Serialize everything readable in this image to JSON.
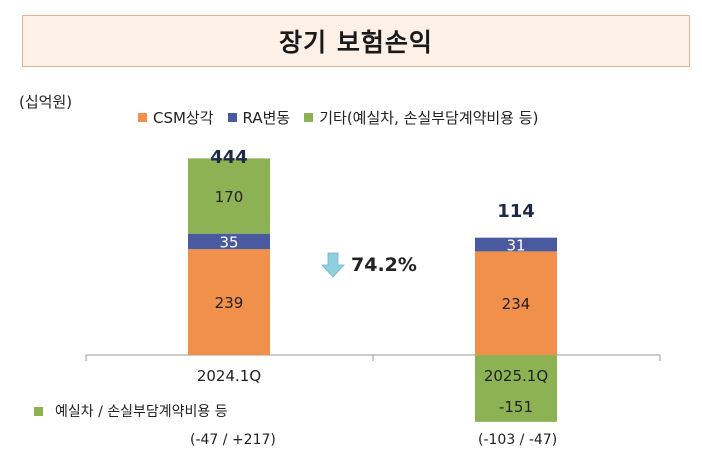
{
  "header": {
    "title": "장기 보험손익"
  },
  "unit_label": "(십억원)",
  "legend": [
    {
      "label": "CSM상각",
      "color": "#f0904a"
    },
    {
      "label": "RA변동",
      "color": "#4a5aa0"
    },
    {
      "label": "기타(예실차, 손실부담계약비용 등)",
      "color": "#8db254"
    }
  ],
  "change": {
    "label": "74.2%",
    "icon": "down-arrow-icon",
    "color": "#8ecfe0"
  },
  "footer": {
    "legend_label": "예실차 / 손실부담계약비용 등",
    "notes": [
      "(-47 / +217)",
      "(-103 / -47)"
    ]
  },
  "chart_data": {
    "type": "bar",
    "stacked": true,
    "categories": [
      "2024.1Q",
      "2025.1Q"
    ],
    "totals": [
      "444",
      "114"
    ],
    "series": [
      {
        "name": "CSM상각",
        "values": [
          239,
          234
        ],
        "color": "#f0904a"
      },
      {
        "name": "RA변동",
        "values": [
          35,
          31
        ],
        "color": "#4a5aa0"
      },
      {
        "name": "기타(예실차, 손실부담계약비용 등)",
        "values": [
          170,
          -151
        ],
        "color": "#8db254"
      }
    ],
    "ylabel": "(십억원)"
  }
}
